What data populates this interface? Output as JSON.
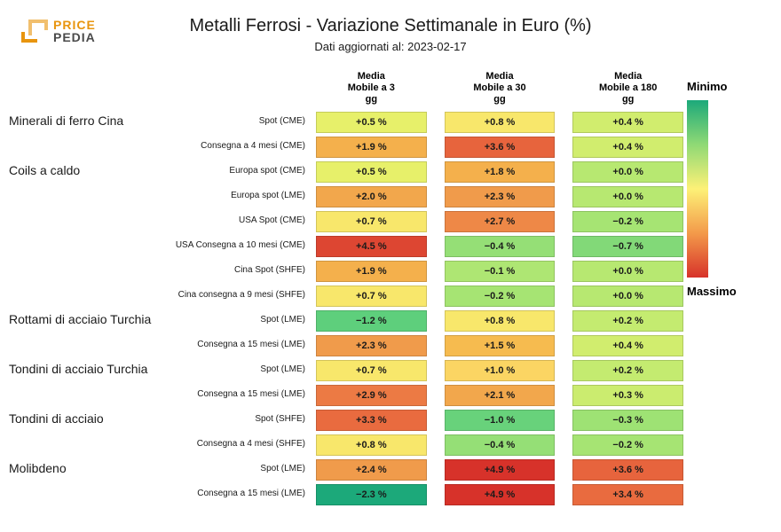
{
  "title": "Metalli Ferrosi - Variazione Settimanale in Euro (%)",
  "subtitle": "Dati aggiornati al: 2023-02-17",
  "logo": {
    "line1": "PRICE",
    "line2": "PEDIA",
    "color1": "#e8950e",
    "color2": "#4a4a4a"
  },
  "legend": {
    "min": "Minimo",
    "max": "Massimo"
  },
  "columns": [
    {
      "label": "Media\nMobile a 3\ngg"
    },
    {
      "label": "Media\nMobile a 30\ngg"
    },
    {
      "label": "Media\nMobile a 180\ngg"
    }
  ],
  "categories": [
    {
      "name": "Minerali di ferro Cina",
      "span": 2
    },
    {
      "name": "Coils a caldo",
      "span": 6
    },
    {
      "name": "Rottami di acciaio Turchia",
      "span": 2
    },
    {
      "name": "Tondini di acciaio Turchia",
      "span": 2
    },
    {
      "name": "Tondini di acciaio",
      "span": 2
    },
    {
      "name": "Molibdeno",
      "span": 2
    }
  ],
  "rows": [
    {
      "sub": "Spot (CME)",
      "v": [
        "+0.5 %",
        "+0.8 %",
        "+0.4 %"
      ],
      "c": [
        "#e7f06a",
        "#f8e76b",
        "#d1ed6e"
      ]
    },
    {
      "sub": "Consegna a 4 mesi (CME)",
      "v": [
        "+1.9 %",
        "+3.6 %",
        "+0.4 %"
      ],
      "c": [
        "#f4b04c",
        "#e7643d",
        "#d1ed6e"
      ]
    },
    {
      "sub": "Europa spot (CME)",
      "v": [
        "+0.5 %",
        "+1.8 %",
        "+0.0 %"
      ],
      "c": [
        "#e7f06a",
        "#f4b04c",
        "#b7e871"
      ]
    },
    {
      "sub": "Europa spot (LME)",
      "v": [
        "+2.0 %",
        "+2.3 %",
        "+0.0 %"
      ],
      "c": [
        "#f2a74c",
        "#f09b4b",
        "#b7e871"
      ]
    },
    {
      "sub": "USA Spot (CME)",
      "v": [
        "+0.7 %",
        "+2.7 %",
        "−0.2 %"
      ],
      "c": [
        "#f8e76b",
        "#ee8847",
        "#a6e473"
      ]
    },
    {
      "sub": "USA Consegna a 10 mesi (CME)",
      "v": [
        "+4.5 %",
        "−0.4 %",
        "−0.7 %"
      ],
      "c": [
        "#dd4632",
        "#95df76",
        "#82d978"
      ]
    },
    {
      "sub": "Cina Spot (SHFE)",
      "v": [
        "+1.9 %",
        "−0.1 %",
        "+0.0 %"
      ],
      "c": [
        "#f4b04c",
        "#aee673",
        "#b7e871"
      ]
    },
    {
      "sub": "Cina consegna a 9 mesi (SHFE)",
      "v": [
        "+0.7 %",
        "−0.2 %",
        "+0.0 %"
      ],
      "c": [
        "#f8e76b",
        "#a6e473",
        "#b7e871"
      ]
    },
    {
      "sub": "Spot (LME)",
      "v": [
        "−1.2 %",
        "+0.8 %",
        "+0.2 %"
      ],
      "c": [
        "#5ecf7c",
        "#f8e76b",
        "#c4eb70"
      ]
    },
    {
      "sub": "Consegna a 15 mesi (LME)",
      "v": [
        "+2.3 %",
        "+1.5 %",
        "+0.4 %"
      ],
      "c": [
        "#f09b4b",
        "#f6bb4f",
        "#d1ed6e"
      ]
    },
    {
      "sub": "Spot (LME)",
      "v": [
        "+0.7 %",
        "+1.0 %",
        "+0.2 %"
      ],
      "c": [
        "#f8e76b",
        "#fbd563",
        "#c4eb70"
      ]
    },
    {
      "sub": "Consegna a 15 mesi (LME)",
      "v": [
        "+2.9 %",
        "+2.1 %",
        "+0.3 %"
      ],
      "c": [
        "#ec7a44",
        "#f2a74c",
        "#cbec6f"
      ]
    },
    {
      "sub": "Spot (SHFE)",
      "v": [
        "+3.3 %",
        "−1.0 %",
        "−0.3 %"
      ],
      "c": [
        "#e96b3f",
        "#68d27b",
        "#9ee274"
      ]
    },
    {
      "sub": "Consegna a 4 mesi (SHFE)",
      "v": [
        "+0.8 %",
        "−0.4 %",
        "−0.2 %"
      ],
      "c": [
        "#f8e76b",
        "#95df76",
        "#a6e473"
      ]
    },
    {
      "sub": "Spot (LME)",
      "v": [
        "+2.4 %",
        "+4.9 %",
        "+3.6 %"
      ],
      "c": [
        "#f09b4b",
        "#d7322a",
        "#e7643d"
      ]
    },
    {
      "sub": "Consegna a 15 mesi (LME)",
      "v": [
        "−2.3 %",
        "+4.9 %",
        "+3.4 %"
      ],
      "c": [
        "#1ca97a",
        "#d7322a",
        "#e96b3f"
      ]
    }
  ]
}
